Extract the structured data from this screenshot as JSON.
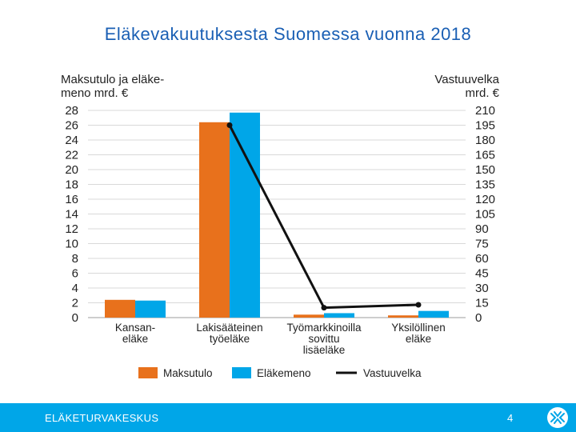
{
  "slide": {
    "title": "Eläkevakuutuksesta Suomessa vuonna 2018",
    "footer_org": "ELÄKETURVAKESKUS",
    "page_number": "4"
  },
  "colors": {
    "maksutulo": "#e8711c",
    "elakemeno": "#00a6e8",
    "vastuuvelka": "#111111",
    "title": "#1a5fb4",
    "footer": "#00a6e8"
  },
  "icons": {
    "footer_logo": "etk-logo-icon"
  },
  "chart_data": {
    "type": "bar",
    "left_axis_title": [
      "Maksutulo ja eläke-",
      "meno mrd. €"
    ],
    "right_axis_title": [
      "Vastuuvelka",
      "mrd. €"
    ],
    "ylim_left": [
      0,
      28
    ],
    "ylim_right": [
      0,
      210
    ],
    "left_ticks": [
      0,
      2,
      4,
      6,
      8,
      10,
      12,
      14,
      16,
      18,
      20,
      22,
      24,
      26,
      28
    ],
    "right_ticks": [
      0,
      15,
      30,
      45,
      60,
      75,
      90,
      105,
      120,
      135,
      150,
      165,
      180,
      195,
      210
    ],
    "grid": true,
    "legend_position": "bottom",
    "categories": [
      [
        "Kansan-",
        "eläke"
      ],
      [
        "Lakisääteinen",
        "työeläke"
      ],
      [
        "Työmarkkinoilla",
        "sovittu",
        "lisäeläke"
      ],
      [
        "Yksilöllinen",
        "eläke"
      ]
    ],
    "series": [
      {
        "name": "Maksutulo",
        "type": "bar",
        "axis": "left",
        "values": [
          2.4,
          26.4,
          0.4,
          0.3
        ]
      },
      {
        "name": "Eläkemeno",
        "type": "bar",
        "axis": "left",
        "values": [
          2.3,
          27.7,
          0.6,
          0.9
        ]
      },
      {
        "name": "Vastuuvelka",
        "type": "line",
        "axis": "right",
        "values": [
          null,
          195,
          10,
          13
        ]
      }
    ]
  }
}
